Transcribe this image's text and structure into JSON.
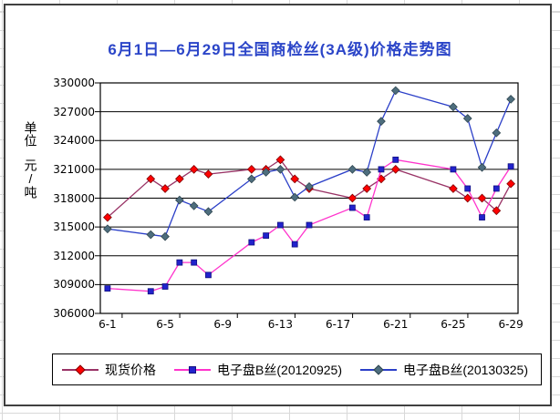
{
  "chart_data": {
    "type": "line",
    "title": "6月1日—6月29日全国商检丝(3A级)价格走势图",
    "title_color": "#2B45C8",
    "grid": "horizontal",
    "legend_position": "bottom",
    "y_axis": {
      "unit_line1": "单位",
      "unit_line2": "元/吨",
      "min": 306000,
      "max": 330000,
      "step": 3000,
      "tick_labels": [
        "306000",
        "309000",
        "312000",
        "315000",
        "318000",
        "321000",
        "324000",
        "327000",
        "330000"
      ]
    },
    "x_axis": {
      "tick_labels": [
        "6-1",
        "6-5",
        "6-9",
        "6-13",
        "6-17",
        "6-21",
        "6-25",
        "6-29"
      ],
      "tick_days": [
        1,
        5,
        9,
        13,
        17,
        21,
        25,
        29
      ],
      "days_total": 29
    },
    "categories": [
      "6-1",
      "6-4",
      "6-5",
      "6-6",
      "6-7",
      "6-8",
      "6-11",
      "6-12",
      "6-13",
      "6-14",
      "6-15",
      "6-18",
      "6-19",
      "6-20",
      "6-21",
      "6-25",
      "6-26",
      "6-27",
      "6-28",
      "6-29"
    ],
    "days": [
      1,
      4,
      5,
      6,
      7,
      8,
      11,
      12,
      13,
      14,
      15,
      18,
      19,
      20,
      21,
      25,
      26,
      27,
      28,
      29
    ],
    "series": [
      {
        "name": "现货价格",
        "line_color": "#993366",
        "marker": "diamond",
        "marker_color": "#FF0000",
        "marker_border": "#7F0000",
        "values": [
          316000,
          320000,
          319000,
          320000,
          321000,
          320500,
          321000,
          321000,
          322000,
          320000,
          319000,
          318000,
          319000,
          320000,
          321000,
          319000,
          318000,
          318000,
          316700,
          319500
        ]
      },
      {
        "name": "电子盘B丝(20120925)",
        "line_color": "#FF33CC",
        "marker": "square",
        "marker_color": "#2222CC",
        "marker_border": "#101080",
        "values": [
          308600,
          308300,
          308800,
          311300,
          311300,
          310000,
          313400,
          314100,
          315200,
          313200,
          315200,
          317000,
          316000,
          321000,
          322000,
          321000,
          319000,
          316000,
          319000,
          321300
        ]
      },
      {
        "name": "电子盘B丝(20130325)",
        "line_color": "#2B3FC8",
        "marker": "diamond",
        "marker_color": "#4E6E7E",
        "marker_border": "#2F4650",
        "values": [
          314800,
          314200,
          314000,
          317800,
          317200,
          316600,
          320000,
          320700,
          321000,
          318100,
          319200,
          321000,
          320700,
          326000,
          329200,
          327500,
          326300,
          321200,
          324800,
          328300
        ]
      }
    ]
  }
}
